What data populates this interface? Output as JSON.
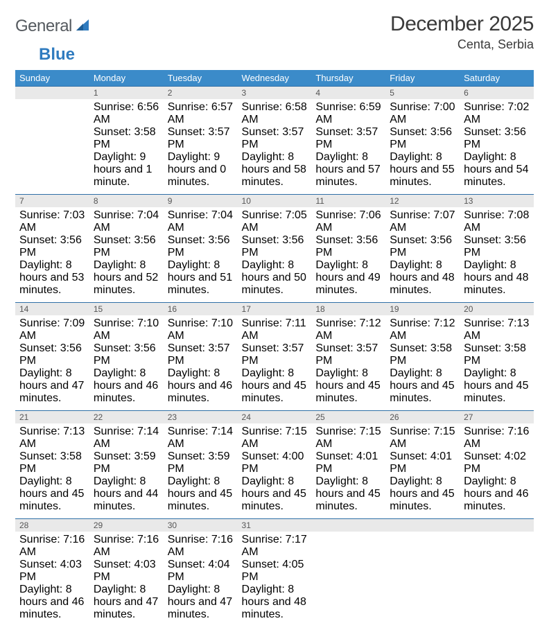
{
  "brand": {
    "part1": "General",
    "part2": "Blue"
  },
  "title": {
    "month_year": "December 2025",
    "location": "Centa, Serbia"
  },
  "colors": {
    "header_bg": "#3b8bc9",
    "header_fg": "#ffffff",
    "row_border": "#2f6fa6",
    "daynum_bg": "#e9e9e9",
    "daynum_fg": "#555555",
    "text": "#222222",
    "brand_gray": "#555a5f",
    "brand_blue": "#2f7bbf",
    "page_bg": "#ffffff"
  },
  "day_names": [
    "Sunday",
    "Monday",
    "Tuesday",
    "Wednesday",
    "Thursday",
    "Friday",
    "Saturday"
  ],
  "weeks": [
    {
      "nums": [
        "",
        "1",
        "2",
        "3",
        "4",
        "5",
        "6"
      ],
      "cells": [
        {
          "sunrise": "",
          "sunset": "",
          "daylight": ""
        },
        {
          "sunrise": "Sunrise: 6:56 AM",
          "sunset": "Sunset: 3:58 PM",
          "daylight": "Daylight: 9 hours and 1 minute."
        },
        {
          "sunrise": "Sunrise: 6:57 AM",
          "sunset": "Sunset: 3:57 PM",
          "daylight": "Daylight: 9 hours and 0 minutes."
        },
        {
          "sunrise": "Sunrise: 6:58 AM",
          "sunset": "Sunset: 3:57 PM",
          "daylight": "Daylight: 8 hours and 58 minutes."
        },
        {
          "sunrise": "Sunrise: 6:59 AM",
          "sunset": "Sunset: 3:57 PM",
          "daylight": "Daylight: 8 hours and 57 minutes."
        },
        {
          "sunrise": "Sunrise: 7:00 AM",
          "sunset": "Sunset: 3:56 PM",
          "daylight": "Daylight: 8 hours and 55 minutes."
        },
        {
          "sunrise": "Sunrise: 7:02 AM",
          "sunset": "Sunset: 3:56 PM",
          "daylight": "Daylight: 8 hours and 54 minutes."
        }
      ]
    },
    {
      "nums": [
        "7",
        "8",
        "9",
        "10",
        "11",
        "12",
        "13"
      ],
      "cells": [
        {
          "sunrise": "Sunrise: 7:03 AM",
          "sunset": "Sunset: 3:56 PM",
          "daylight": "Daylight: 8 hours and 53 minutes."
        },
        {
          "sunrise": "Sunrise: 7:04 AM",
          "sunset": "Sunset: 3:56 PM",
          "daylight": "Daylight: 8 hours and 52 minutes."
        },
        {
          "sunrise": "Sunrise: 7:04 AM",
          "sunset": "Sunset: 3:56 PM",
          "daylight": "Daylight: 8 hours and 51 minutes."
        },
        {
          "sunrise": "Sunrise: 7:05 AM",
          "sunset": "Sunset: 3:56 PM",
          "daylight": "Daylight: 8 hours and 50 minutes."
        },
        {
          "sunrise": "Sunrise: 7:06 AM",
          "sunset": "Sunset: 3:56 PM",
          "daylight": "Daylight: 8 hours and 49 minutes."
        },
        {
          "sunrise": "Sunrise: 7:07 AM",
          "sunset": "Sunset: 3:56 PM",
          "daylight": "Daylight: 8 hours and 48 minutes."
        },
        {
          "sunrise": "Sunrise: 7:08 AM",
          "sunset": "Sunset: 3:56 PM",
          "daylight": "Daylight: 8 hours and 48 minutes."
        }
      ]
    },
    {
      "nums": [
        "14",
        "15",
        "16",
        "17",
        "18",
        "19",
        "20"
      ],
      "cells": [
        {
          "sunrise": "Sunrise: 7:09 AM",
          "sunset": "Sunset: 3:56 PM",
          "daylight": "Daylight: 8 hours and 47 minutes."
        },
        {
          "sunrise": "Sunrise: 7:10 AM",
          "sunset": "Sunset: 3:56 PM",
          "daylight": "Daylight: 8 hours and 46 minutes."
        },
        {
          "sunrise": "Sunrise: 7:10 AM",
          "sunset": "Sunset: 3:57 PM",
          "daylight": "Daylight: 8 hours and 46 minutes."
        },
        {
          "sunrise": "Sunrise: 7:11 AM",
          "sunset": "Sunset: 3:57 PM",
          "daylight": "Daylight: 8 hours and 45 minutes."
        },
        {
          "sunrise": "Sunrise: 7:12 AM",
          "sunset": "Sunset: 3:57 PM",
          "daylight": "Daylight: 8 hours and 45 minutes."
        },
        {
          "sunrise": "Sunrise: 7:12 AM",
          "sunset": "Sunset: 3:58 PM",
          "daylight": "Daylight: 8 hours and 45 minutes."
        },
        {
          "sunrise": "Sunrise: 7:13 AM",
          "sunset": "Sunset: 3:58 PM",
          "daylight": "Daylight: 8 hours and 45 minutes."
        }
      ]
    },
    {
      "nums": [
        "21",
        "22",
        "23",
        "24",
        "25",
        "26",
        "27"
      ],
      "cells": [
        {
          "sunrise": "Sunrise: 7:13 AM",
          "sunset": "Sunset: 3:58 PM",
          "daylight": "Daylight: 8 hours and 45 minutes."
        },
        {
          "sunrise": "Sunrise: 7:14 AM",
          "sunset": "Sunset: 3:59 PM",
          "daylight": "Daylight: 8 hours and 44 minutes."
        },
        {
          "sunrise": "Sunrise: 7:14 AM",
          "sunset": "Sunset: 3:59 PM",
          "daylight": "Daylight: 8 hours and 45 minutes."
        },
        {
          "sunrise": "Sunrise: 7:15 AM",
          "sunset": "Sunset: 4:00 PM",
          "daylight": "Daylight: 8 hours and 45 minutes."
        },
        {
          "sunrise": "Sunrise: 7:15 AM",
          "sunset": "Sunset: 4:01 PM",
          "daylight": "Daylight: 8 hours and 45 minutes."
        },
        {
          "sunrise": "Sunrise: 7:15 AM",
          "sunset": "Sunset: 4:01 PM",
          "daylight": "Daylight: 8 hours and 45 minutes."
        },
        {
          "sunrise": "Sunrise: 7:16 AM",
          "sunset": "Sunset: 4:02 PM",
          "daylight": "Daylight: 8 hours and 46 minutes."
        }
      ]
    },
    {
      "nums": [
        "28",
        "29",
        "30",
        "31",
        "",
        "",
        ""
      ],
      "cells": [
        {
          "sunrise": "Sunrise: 7:16 AM",
          "sunset": "Sunset: 4:03 PM",
          "daylight": "Daylight: 8 hours and 46 minutes."
        },
        {
          "sunrise": "Sunrise: 7:16 AM",
          "sunset": "Sunset: 4:03 PM",
          "daylight": "Daylight: 8 hours and 47 minutes."
        },
        {
          "sunrise": "Sunrise: 7:16 AM",
          "sunset": "Sunset: 4:04 PM",
          "daylight": "Daylight: 8 hours and 47 minutes."
        },
        {
          "sunrise": "Sunrise: 7:17 AM",
          "sunset": "Sunset: 4:05 PM",
          "daylight": "Daylight: 8 hours and 48 minutes."
        },
        {
          "sunrise": "",
          "sunset": "",
          "daylight": ""
        },
        {
          "sunrise": "",
          "sunset": "",
          "daylight": ""
        },
        {
          "sunrise": "",
          "sunset": "",
          "daylight": ""
        }
      ]
    }
  ]
}
